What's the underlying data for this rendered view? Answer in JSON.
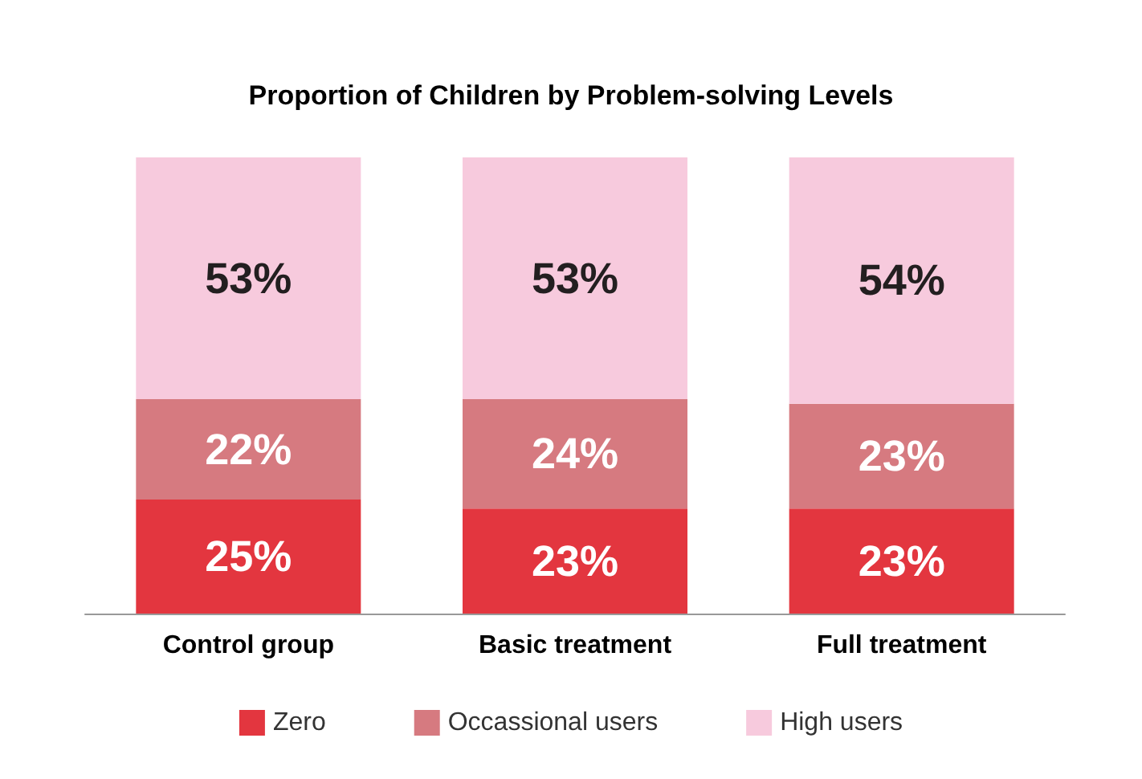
{
  "chart_data": {
    "type": "bar",
    "title": "Proportion of Children by Problem-solving Levels",
    "categories": [
      "Control group",
      "Basic treatment",
      "Full treatment"
    ],
    "stacked": true,
    "legend": "bottom",
    "series": [
      {
        "name": "Zero",
        "color": "#e3363f",
        "values": [
          25,
          23,
          23
        ],
        "value_labels": [
          "25%",
          "23%",
          "23%"
        ]
      },
      {
        "name": "Occassional users",
        "color": "#d67a80",
        "values": [
          22,
          24,
          23
        ],
        "value_labels": [
          "22%",
          "24%",
          "23%"
        ]
      },
      {
        "name": "High users",
        "color": "#f7cadd",
        "values": [
          53,
          53,
          54
        ],
        "value_labels": [
          "53%",
          "53%",
          "54%"
        ]
      }
    ]
  }
}
